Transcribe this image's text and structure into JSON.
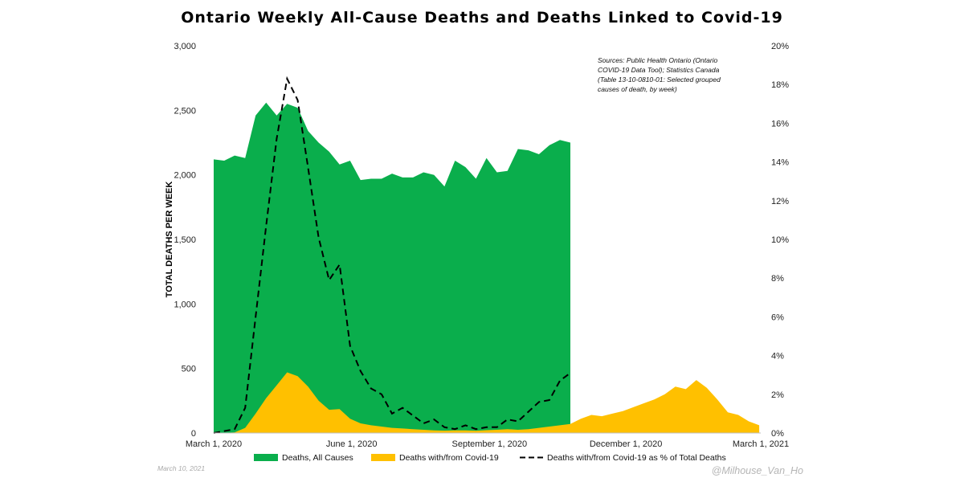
{
  "chart_data": {
    "type": "area",
    "title": "Ontario Weekly All-Cause Deaths and Deaths Linked to Covid-19",
    "ylabel": "TOTAL DEATHS PER WEEK",
    "ylim": [
      0,
      3000
    ],
    "y2lim": [
      0,
      0.2
    ],
    "y_ticks": [
      "0",
      "500",
      "1,000",
      "1,500",
      "2,000",
      "2,500",
      "3,000"
    ],
    "y2_ticks": [
      "0%",
      "2%",
      "4%",
      "6%",
      "8%",
      "10%",
      "12%",
      "14%",
      "16%",
      "18%",
      "20%"
    ],
    "x_ticks": [
      {
        "label": "March 1, 2020",
        "date": "2020-03-01"
      },
      {
        "label": "June 1, 2020",
        "date": "2020-06-01"
      },
      {
        "label": "September 1, 2020",
        "date": "2020-09-01"
      },
      {
        "label": "December 1, 2020",
        "date": "2020-12-01"
      },
      {
        "label": "March 1, 2021",
        "date": "2021-03-01"
      }
    ],
    "xlim": [
      "2020-03-01",
      "2021-03-01"
    ],
    "annotation": "Sources: Public Health Ontario (Ontario COVID-19 Data Tool); Statistics Canada (Table 13-10-0810-01: Selected grouped causes of death, by week)",
    "annotation_lines": [
      "Sources: Public Health Ontario (Ontario",
      "COVID-19 Data Tool); Statistics Canada",
      "(Table 13-10-0810-01: Selected grouped",
      "causes of death, by week)"
    ],
    "series": [
      {
        "name": "Deaths, All Causes",
        "style": "area",
        "color": "#0aae4c",
        "x": [
          "2020-03-01",
          "2020-03-08",
          "2020-03-15",
          "2020-03-22",
          "2020-03-29",
          "2020-04-05",
          "2020-04-12",
          "2020-04-19",
          "2020-04-26",
          "2020-05-03",
          "2020-05-10",
          "2020-05-17",
          "2020-05-24",
          "2020-05-31",
          "2020-06-07",
          "2020-06-14",
          "2020-06-21",
          "2020-06-28",
          "2020-07-05",
          "2020-07-12",
          "2020-07-19",
          "2020-07-26",
          "2020-08-02",
          "2020-08-09",
          "2020-08-16",
          "2020-08-23",
          "2020-08-30",
          "2020-09-06",
          "2020-09-13",
          "2020-09-20",
          "2020-09-27",
          "2020-10-04",
          "2020-10-11",
          "2020-10-18",
          "2020-10-25",
          "2020-11-01",
          "2020-11-08",
          "2020-11-15"
        ],
        "values": [
          2120,
          2110,
          2150,
          2130,
          2460,
          2560,
          2460,
          2550,
          2520,
          2340,
          2250,
          2180,
          2080,
          2110,
          1960,
          1970,
          1970,
          2010,
          1980,
          1980,
          2020,
          2000,
          1910,
          2110,
          2060,
          1970,
          2130,
          2020,
          2030,
          2200,
          2190,
          2160,
          2230,
          2270,
          2250,
          null,
          null,
          null
        ]
      },
      {
        "name": "Deaths with/from Covid-19",
        "style": "area",
        "color": "#ffc000",
        "x": [
          "2020-03-01",
          "2020-03-08",
          "2020-03-15",
          "2020-03-22",
          "2020-03-29",
          "2020-04-05",
          "2020-04-12",
          "2020-04-19",
          "2020-04-26",
          "2020-05-03",
          "2020-05-10",
          "2020-05-17",
          "2020-05-24",
          "2020-05-31",
          "2020-06-07",
          "2020-06-14",
          "2020-06-21",
          "2020-06-28",
          "2020-07-05",
          "2020-07-12",
          "2020-07-19",
          "2020-07-26",
          "2020-08-02",
          "2020-08-09",
          "2020-08-16",
          "2020-08-23",
          "2020-08-30",
          "2020-09-06",
          "2020-09-13",
          "2020-09-20",
          "2020-09-27",
          "2020-10-04",
          "2020-10-11",
          "2020-10-18",
          "2020-10-25",
          "2020-11-01",
          "2020-11-08",
          "2020-11-15",
          "2020-11-22",
          "2020-11-29",
          "2020-12-06",
          "2020-12-13",
          "2020-12-20",
          "2020-12-27",
          "2021-01-03",
          "2021-01-10",
          "2021-01-17",
          "2021-01-24",
          "2021-01-31",
          "2021-02-07",
          "2021-02-14",
          "2021-02-21",
          "2021-02-28"
        ],
        "values": [
          0,
          2,
          5,
          40,
          150,
          270,
          370,
          470,
          440,
          360,
          250,
          180,
          185,
          110,
          75,
          60,
          50,
          40,
          35,
          30,
          25,
          20,
          18,
          20,
          20,
          17,
          22,
          25,
          30,
          25,
          30,
          40,
          50,
          60,
          70,
          110,
          140,
          130,
          150,
          170,
          200,
          230,
          260,
          300,
          360,
          340,
          410,
          350,
          260,
          160,
          140,
          90,
          60
        ]
      },
      {
        "name": "Deaths with/from Covid-19 as % of Total Deaths",
        "style": "dashed-line",
        "axis": "right",
        "color": "#000000",
        "x": [
          "2020-03-01",
          "2020-03-08",
          "2020-03-15",
          "2020-03-22",
          "2020-03-29",
          "2020-04-05",
          "2020-04-12",
          "2020-04-19",
          "2020-04-26",
          "2020-05-03",
          "2020-05-10",
          "2020-05-17",
          "2020-05-24",
          "2020-05-31",
          "2020-06-07",
          "2020-06-14",
          "2020-06-21",
          "2020-06-28",
          "2020-07-05",
          "2020-07-12",
          "2020-07-19",
          "2020-07-26",
          "2020-08-02",
          "2020-08-09",
          "2020-08-16",
          "2020-08-23",
          "2020-08-30",
          "2020-09-06",
          "2020-09-13",
          "2020-09-20",
          "2020-09-27",
          "2020-10-04",
          "2020-10-11",
          "2020-10-18",
          "2020-10-25",
          "2020-11-01"
        ],
        "values": [
          0.0,
          0.001,
          0.002,
          0.013,
          0.06,
          0.107,
          0.152,
          0.183,
          0.172,
          0.137,
          0.101,
          0.079,
          0.087,
          0.045,
          0.032,
          0.023,
          0.02,
          0.01,
          0.013,
          0.009,
          0.005,
          0.007,
          0.003,
          0.002,
          0.004,
          0.002,
          0.003,
          0.003,
          0.007,
          0.006,
          0.011,
          0.016,
          0.017,
          0.027,
          0.031,
          null
        ]
      }
    ]
  },
  "footer": {
    "date_stamp": "March 10, 2021",
    "credit": "@Milhouse_Van_Ho"
  }
}
